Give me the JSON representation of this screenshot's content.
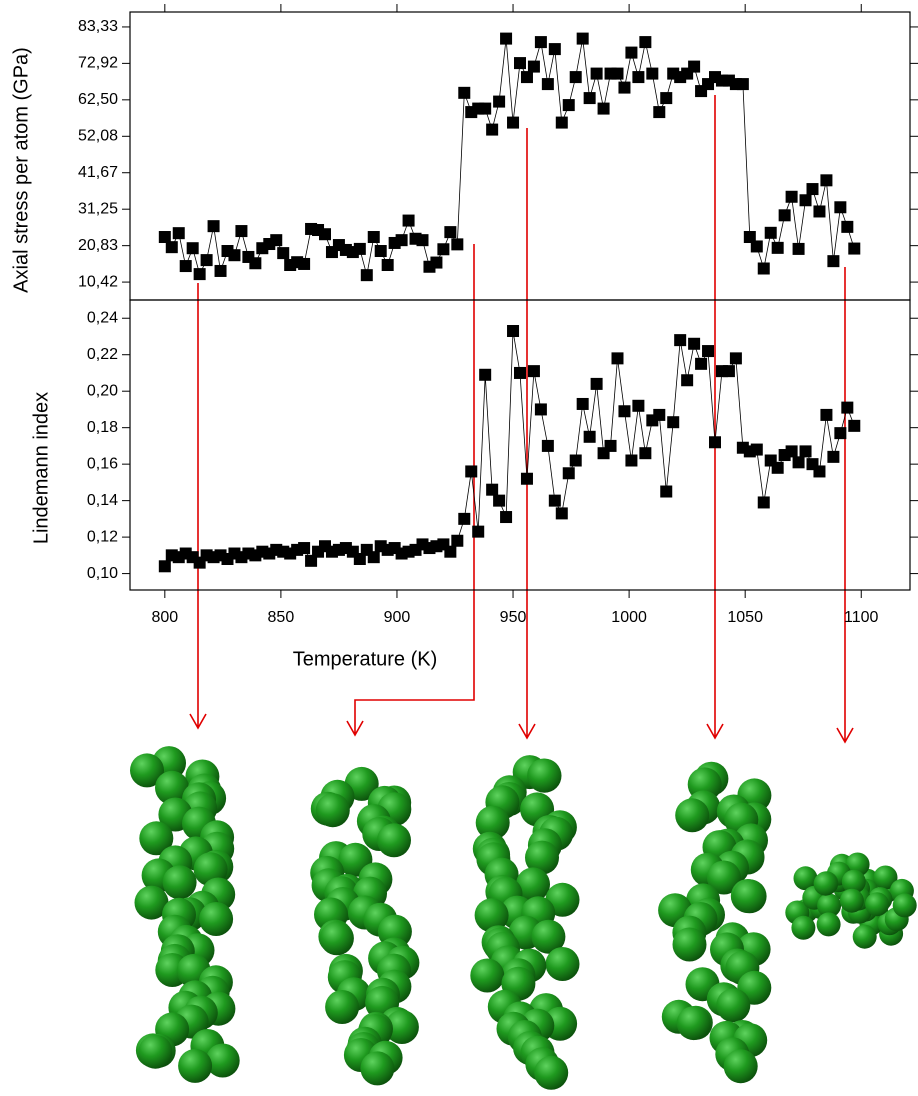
{
  "chart_data": [
    {
      "type": "line",
      "ylabel": "Axial stress per atom (GPa)",
      "color": "#000000",
      "marker": "square",
      "xlim": [
        785,
        1121
      ],
      "xticks": [
        800,
        850,
        900,
        950,
        1000,
        1050,
        1100
      ],
      "ylim": [
        5.3,
        87.6
      ],
      "yticks": [
        {
          "value": 10.42,
          "label": "10,42"
        },
        {
          "value": 20.83,
          "label": "20,83"
        },
        {
          "value": 31.25,
          "label": "31,25"
        },
        {
          "value": 41.67,
          "label": "41,67"
        },
        {
          "value": 52.08,
          "label": "52,08"
        },
        {
          "value": 62.5,
          "label": "62,50"
        },
        {
          "value": 72.92,
          "label": "72,92"
        },
        {
          "value": 83.33,
          "label": "83,33"
        }
      ],
      "x": [
        800,
        803,
        806,
        809,
        812,
        815,
        818,
        821,
        824,
        827,
        830,
        833,
        836,
        839,
        842,
        845,
        848,
        851,
        854,
        857,
        860,
        863,
        866,
        869,
        872,
        875,
        878,
        881,
        884,
        887,
        890,
        893,
        896,
        899,
        902,
        905,
        908,
        911,
        914,
        917,
        920,
        923,
        926,
        929,
        932,
        935,
        938,
        941,
        944,
        947,
        950,
        953,
        956,
        959,
        962,
        965,
        968,
        971,
        974,
        977,
        980,
        983,
        986,
        989,
        992,
        995,
        998,
        1001,
        1004,
        1007,
        1010,
        1013,
        1016,
        1019,
        1022,
        1025,
        1028,
        1031,
        1034,
        1037,
        1040,
        1043,
        1046,
        1049,
        1052,
        1055,
        1058,
        1061,
        1064,
        1067,
        1070,
        1073,
        1076,
        1079,
        1082,
        1085,
        1088,
        1091,
        1094,
        1097
      ],
      "values": [
        23.3,
        20.4,
        24.4,
        15,
        20.1,
        12.7,
        16.7,
        26.4,
        13.6,
        19.3,
        18.1,
        25,
        17.6,
        15.8,
        20.1,
        21.3,
        22.4,
        18.7,
        15.3,
        16.1,
        15.6,
        25.6,
        25.3,
        24.1,
        19,
        21,
        19.6,
        19,
        19.9,
        12.4,
        23.3,
        19.3,
        15.3,
        21.6,
        22.4,
        28,
        22.8,
        22.4,
        14.8,
        16,
        19.8,
        24.7,
        21.2,
        64.5,
        59,
        60,
        60,
        54,
        62,
        80,
        56,
        73,
        69,
        72,
        79,
        67,
        77,
        56,
        61,
        69,
        80,
        63,
        70,
        60,
        70,
        70,
        66,
        76,
        69,
        79,
        70,
        59,
        63,
        70,
        69,
        70,
        72,
        65,
        67,
        69,
        68,
        68,
        67,
        67,
        23.3,
        20.6,
        14.3,
        24.5,
        20.2,
        29.5,
        34.8,
        19.9,
        33.8,
        37,
        30.6,
        39.5,
        16.4,
        31.8,
        26.2,
        20
      ]
    },
    {
      "type": "line",
      "ylabel": "Lindemann index",
      "xlabel": "Temperature (K)",
      "color": "#000000",
      "marker": "square",
      "xlim": [
        785,
        1121
      ],
      "xticks": [
        800,
        850,
        900,
        950,
        1000,
        1050,
        1100
      ],
      "ylim": [
        0.091,
        0.25
      ],
      "yticks": [
        {
          "value": 0.1,
          "label": "0,10"
        },
        {
          "value": 0.12,
          "label": "0,12"
        },
        {
          "value": 0.14,
          "label": "0,14"
        },
        {
          "value": 0.16,
          "label": "0,16"
        },
        {
          "value": 0.18,
          "label": "0,18"
        },
        {
          "value": 0.2,
          "label": "0,20"
        },
        {
          "value": 0.22,
          "label": "0,22"
        },
        {
          "value": 0.24,
          "label": "0,24"
        }
      ],
      "x": [
        800,
        803,
        806,
        809,
        812,
        815,
        818,
        821,
        824,
        827,
        830,
        833,
        836,
        839,
        842,
        845,
        848,
        851,
        854,
        857,
        860,
        863,
        866,
        869,
        872,
        875,
        878,
        881,
        884,
        887,
        890,
        893,
        896,
        899,
        902,
        905,
        908,
        911,
        914,
        917,
        920,
        923,
        926,
        929,
        932,
        935,
        938,
        941,
        944,
        947,
        950,
        953,
        956,
        959,
        962,
        965,
        968,
        971,
        974,
        977,
        980,
        983,
        986,
        989,
        992,
        995,
        998,
        1001,
        1004,
        1007,
        1010,
        1013,
        1016,
        1019,
        1022,
        1025,
        1028,
        1031,
        1034,
        1037,
        1040,
        1043,
        1046,
        1049,
        1052,
        1055,
        1058,
        1061,
        1064,
        1067,
        1070,
        1073,
        1076,
        1079,
        1082,
        1085,
        1088,
        1091,
        1094,
        1097
      ],
      "values": [
        0.104,
        0.11,
        0.109,
        0.111,
        0.109,
        0.106,
        0.11,
        0.109,
        0.11,
        0.108,
        0.111,
        0.109,
        0.111,
        0.11,
        0.112,
        0.111,
        0.113,
        0.112,
        0.111,
        0.113,
        0.114,
        0.107,
        0.112,
        0.115,
        0.112,
        0.113,
        0.114,
        0.112,
        0.108,
        0.113,
        0.109,
        0.115,
        0.113,
        0.114,
        0.111,
        0.112,
        0.113,
        0.116,
        0.114,
        0.115,
        0.116,
        0.112,
        0.118,
        0.13,
        0.156,
        0.123,
        0.209,
        0.146,
        0.14,
        0.131,
        0.233,
        0.21,
        0.152,
        0.211,
        0.19,
        0.17,
        0.14,
        0.133,
        0.155,
        0.162,
        0.193,
        0.175,
        0.204,
        0.166,
        0.17,
        0.218,
        0.189,
        0.162,
        0.192,
        0.166,
        0.184,
        0.187,
        0.145,
        0.183,
        0.228,
        0.206,
        0.226,
        0.215,
        0.222,
        0.172,
        0.211,
        0.211,
        0.218,
        0.169,
        0.167,
        0.168,
        0.139,
        0.162,
        0.158,
        0.165,
        0.167,
        0.161,
        0.167,
        0.16,
        0.156,
        0.187,
        0.164,
        0.177,
        0.191,
        0.181
      ]
    }
  ]
}
